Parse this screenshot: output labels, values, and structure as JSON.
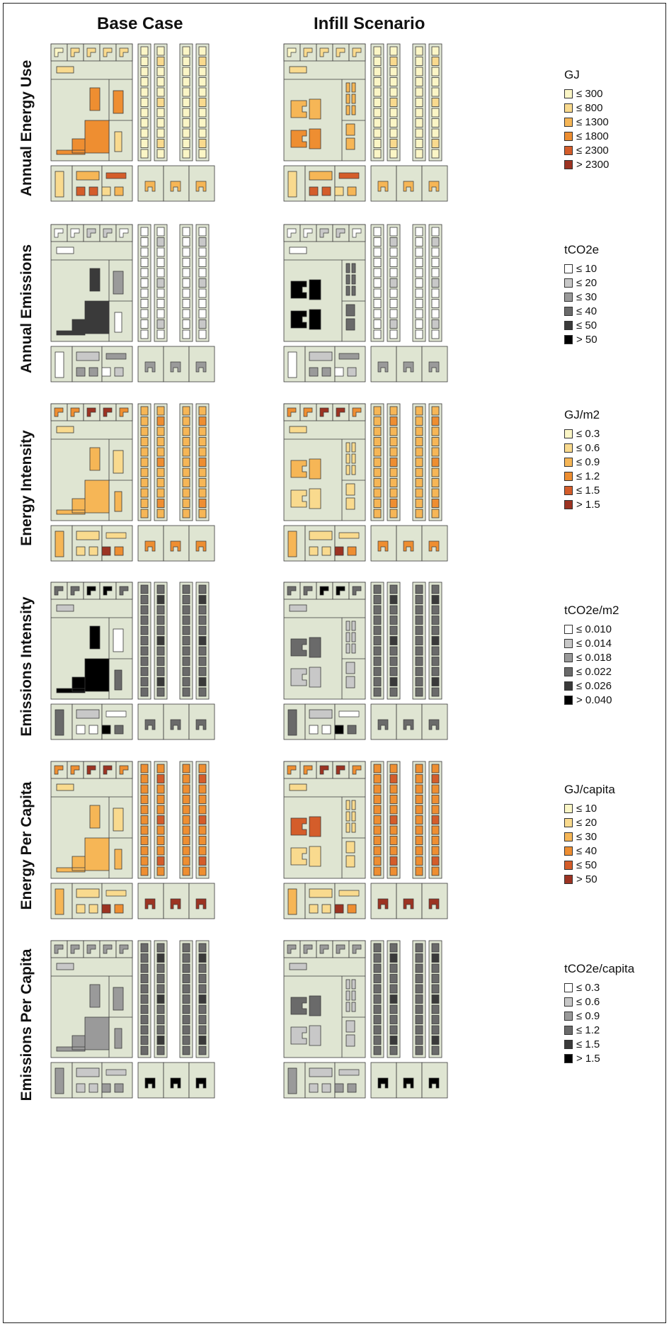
{
  "columns": [
    {
      "label": "Base Case"
    },
    {
      "label": "Infill Scenario"
    }
  ],
  "rows": [
    {
      "label": "Annual Energy Use",
      "legend": {
        "title": "GJ",
        "items": [
          "≤ 300",
          "≤ 800",
          "≤ 1300",
          "≤ 1800",
          "≤ 2300",
          "> 2300"
        ]
      },
      "colors": [
        "#fbf6c6",
        "#f9da8e",
        "#f6b656",
        "#ee8e31",
        "#d45d2a",
        "#9c3322"
      ]
    },
    {
      "label": "Annual Emissions",
      "legend": {
        "title": "tCO2e",
        "items": [
          "≤ 10",
          "≤ 20",
          "≤ 30",
          "≤ 40",
          "≤ 50",
          "> 50"
        ]
      },
      "colors": [
        "#ffffff",
        "#c8c8c8",
        "#9a9a9a",
        "#6a6a6a",
        "#3a3a3a",
        "#000000"
      ]
    },
    {
      "label": "Energy Intensity",
      "legend": {
        "title": "GJ/m2",
        "items": [
          "≤ 0.3",
          "≤ 0.6",
          "≤ 0.9",
          "≤ 1.2",
          "≤ 1.5",
          "> 1.5"
        ]
      },
      "colors": [
        "#fbf6c6",
        "#f9da8e",
        "#f6b656",
        "#ee8e31",
        "#d45d2a",
        "#9c3322"
      ]
    },
    {
      "label": "Emissions Intensity",
      "legend": {
        "title": "tCO2e/m2",
        "items": [
          "≤ 0.010",
          "≤ 0.014",
          "≤ 0.018",
          "≤ 0.022",
          "≤ 0.026",
          "> 0.040"
        ]
      },
      "colors": [
        "#ffffff",
        "#c8c8c8",
        "#9a9a9a",
        "#6a6a6a",
        "#3a3a3a",
        "#000000"
      ]
    },
    {
      "label": "Energy  Per Capita",
      "legend": {
        "title": "GJ/capita",
        "items": [
          "≤ 10",
          "≤ 20",
          "≤ 30",
          "≤ 40",
          "≤ 50",
          "> 50"
        ]
      },
      "colors": [
        "#fbf6c6",
        "#f9da8e",
        "#f6b656",
        "#ee8e31",
        "#d45d2a",
        "#9c3322"
      ]
    },
    {
      "label": "Emissions Per Capita",
      "legend": {
        "title": "tCO2e/capita",
        "items": [
          "≤ 0.3",
          "≤ 0.6",
          "≤ 0.9",
          "≤ 1.2",
          "≤ 1.5",
          "> 1.5"
        ]
      },
      "colors": [
        "#ffffff",
        "#c8c8c8",
        "#9a9a9a",
        "#6a6a6a",
        "#3a3a3a",
        "#000000"
      ]
    }
  ],
  "colors": {
    "parcel": "#dfe5d2",
    "parcel_border": "#3a3a3a"
  }
}
